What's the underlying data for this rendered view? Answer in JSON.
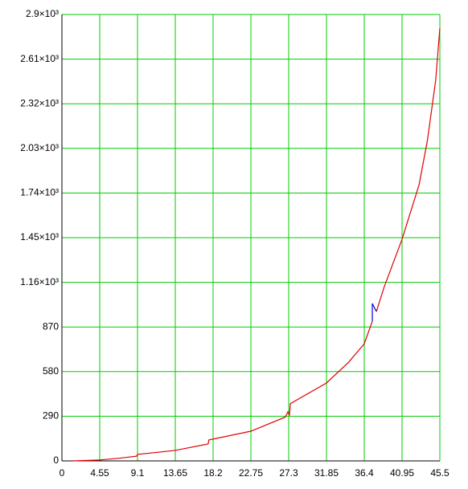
{
  "chart_data": {
    "type": "line",
    "xlim": [
      0,
      45.5
    ],
    "xticks": [
      0,
      4.55,
      9.1,
      13.65,
      18.2,
      22.75,
      27.3,
      31.85,
      36.4,
      40.95,
      45.5
    ],
    "ylim": [
      0,
      2900
    ],
    "yticks": [
      0,
      290,
      580,
      870,
      {
        "value": 1160,
        "label": "1.16×10³"
      },
      {
        "value": 1450,
        "label": "1.45×10³"
      },
      {
        "value": 1740,
        "label": "1.74×10³"
      },
      {
        "value": 2030,
        "label": "2.03×10³"
      },
      {
        "value": 2320,
        "label": "2.32×10³"
      },
      {
        "value": 2610,
        "label": "2.61×10³"
      },
      {
        "value": 2900,
        "label": "2.9×10³"
      }
    ],
    "grid": true,
    "grid_color": "#00cc00",
    "series": [
      {
        "color": "#e00000",
        "x": [
          1.3,
          4.55,
          7,
          9.0,
          9.1,
          13.65,
          17.6,
          17.7,
          22.75,
          26.9,
          27.2,
          27.4,
          27.5,
          31.85,
          34.5,
          36.4,
          37.37,
          37.6,
          37.86,
          38.8,
          40.95,
          43,
          44,
          45,
          45.5
        ],
        "values": [
          0,
          6,
          18,
          31,
          42,
          68,
          110,
          136,
          193,
          285,
          318,
          300,
          372,
          506,
          640,
          761,
          907,
          null,
          970,
          1130,
          1440,
          1794,
          2081,
          2473,
          2812
        ]
      },
      {
        "color": "#0000e0",
        "x": [
          37.37,
          37.37,
          37.86
        ],
        "values": [
          907,
          1022,
          970
        ]
      }
    ]
  }
}
